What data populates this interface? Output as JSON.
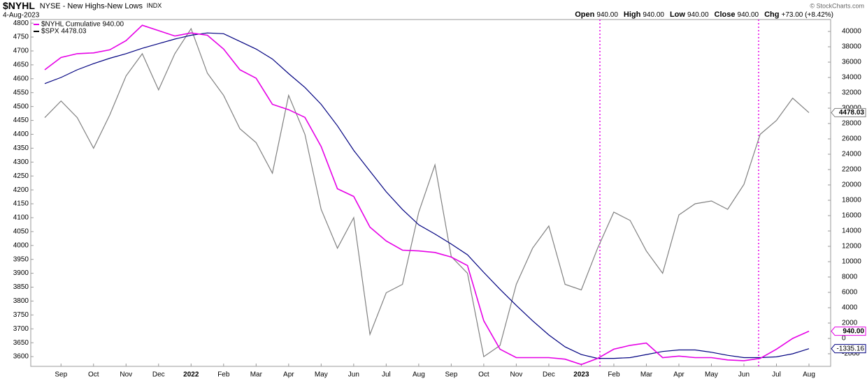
{
  "chart_data": {
    "type": "line",
    "symbol": "$NYHL",
    "name": "NYSE - New Highs-New Lows",
    "exchange": "INDX",
    "date": "4-Aug-2023",
    "quote": [
      [
        "Open",
        "940.00"
      ],
      [
        "High",
        "940.00"
      ],
      [
        "Low",
        "940.00"
      ],
      [
        "Close",
        "940.00"
      ],
      [
        "Chg",
        "+73.00 (+8.42%)"
      ]
    ],
    "copyright": "© StockCharts.com",
    "categories": [
      null,
      "Sep",
      null,
      "Oct",
      null,
      "Nov",
      null,
      "Dec",
      null,
      "2022",
      null,
      "Feb",
      null,
      "Mar",
      null,
      "Apr",
      null,
      "May",
      null,
      "Jun",
      null,
      "Jul",
      null,
      "Aug",
      null,
      "Sep",
      null,
      "Oct",
      null,
      "Nov",
      null,
      "Dec",
      null,
      "2023",
      null,
      "Feb",
      null,
      "Mar",
      null,
      "Apr",
      null,
      "May",
      null,
      "Jun",
      null,
      "Jul",
      null,
      "Aug"
    ],
    "ylim": [
      3565,
      4813
    ],
    "yticks": [
      3600,
      3650,
      3700,
      3750,
      3800,
      3850,
      3900,
      3950,
      4000,
      4050,
      4100,
      4150,
      4200,
      4250,
      4300,
      4350,
      4400,
      4450,
      4500,
      4550,
      4600,
      4650,
      4700,
      4750,
      4800
    ],
    "y2lim": [
      -3640,
      41550
    ],
    "y2ticks": [
      -2000,
      0,
      2000,
      4000,
      6000,
      8000,
      10000,
      12000,
      14000,
      16000,
      18000,
      20000,
      22000,
      24000,
      26000,
      28000,
      30000,
      32000,
      34000,
      36000,
      38000,
      40000
    ],
    "grid": false,
    "series": [
      {
        "name": "$SPX 4478.03",
        "color": "#808080",
        "legend_color": "#000000",
        "axis": "y",
        "end_label": "4478.03",
        "values": [
          4460,
          4520,
          4460,
          4350,
          4470,
          4610,
          4690,
          4560,
          4690,
          4780,
          4620,
          4540,
          4420,
          4370,
          4260,
          4540,
          4400,
          4130,
          3990,
          4100,
          3680,
          3830,
          3860,
          4120,
          4290,
          3960,
          3900,
          3600,
          3640,
          3860,
          3990,
          4070,
          3860,
          3840,
          3990,
          4120,
          4090,
          3980,
          3900,
          4110,
          4150,
          4160,
          4130,
          4220,
          4400,
          4450,
          4530,
          4478.03
        ]
      },
      {
        "color": "#000080",
        "axis": "y2",
        "end_label": "-1335.16",
        "values": [
          33200,
          34000,
          35000,
          35800,
          36500,
          37100,
          37800,
          38400,
          39000,
          39500,
          39800,
          39700,
          38700,
          37700,
          36400,
          34500,
          32700,
          30500,
          27700,
          24500,
          21800,
          19100,
          16800,
          14800,
          13600,
          12300,
          10900,
          8600,
          6400,
          4300,
          2300,
          450,
          -1100,
          -2100,
          -2600,
          -2600,
          -2500,
          -2100,
          -1700,
          -1500,
          -1500,
          -1800,
          -2200,
          -2500,
          -2500,
          -2400,
          -2000,
          -1335.16
        ]
      },
      {
        "name": "$NYHL Cumulative 940.00",
        "color": "#e600e6",
        "axis": "y2",
        "end_label": "940.00",
        "values": [
          35000,
          36600,
          37100,
          37200,
          37600,
          38800,
          40800,
          40100,
          39400,
          39800,
          39500,
          37700,
          35000,
          33900,
          30500,
          29800,
          28800,
          25000,
          19500,
          18500,
          14500,
          12700,
          11500,
          11400,
          11200,
          10600,
          9500,
          2300,
          -1400,
          -2500,
          -2500,
          -2500,
          -2700,
          -3400,
          -2600,
          -1400,
          -900,
          -600,
          -2500,
          -2300,
          -2500,
          -2500,
          -2800,
          -2900,
          -2600,
          -1400,
          0,
          940
        ]
      }
    ]
  }
}
